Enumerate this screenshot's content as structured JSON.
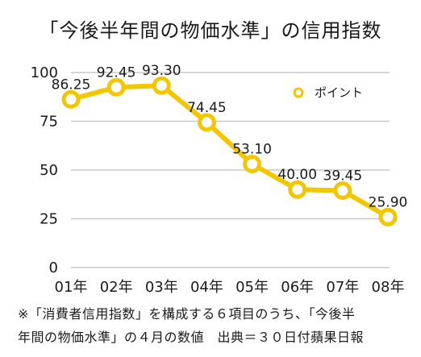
{
  "title": "「今後半年間の物価水準」の信用指数",
  "footnote": {
    "line1": "※「消費者信用指数」を構成する６項目のうち、「今後半",
    "line2": "年間の物価水準」の４月の数値　出典＝３０日付蘋果日報"
  },
  "chart_data": {
    "type": "line",
    "categories": [
      "01年",
      "02年",
      "03年",
      "04年",
      "05年",
      "06年",
      "07年",
      "08年"
    ],
    "series": [
      {
        "name": "ポイント",
        "values": [
          86.25,
          92.45,
          93.3,
          74.45,
          53.1,
          40.0,
          39.45,
          25.9
        ]
      }
    ],
    "data_labels": [
      "86.25",
      "92.45",
      "93.30",
      "74.45",
      "53.10",
      "40.00",
      "39.45",
      "25.90"
    ],
    "yticks": [
      "0",
      "25",
      "50",
      "75",
      "100"
    ],
    "ylim": [
      0,
      100
    ],
    "grid": true,
    "legend_position": "top-right",
    "series_color": "#f2c700",
    "grid_color": "#c8c8c8"
  }
}
